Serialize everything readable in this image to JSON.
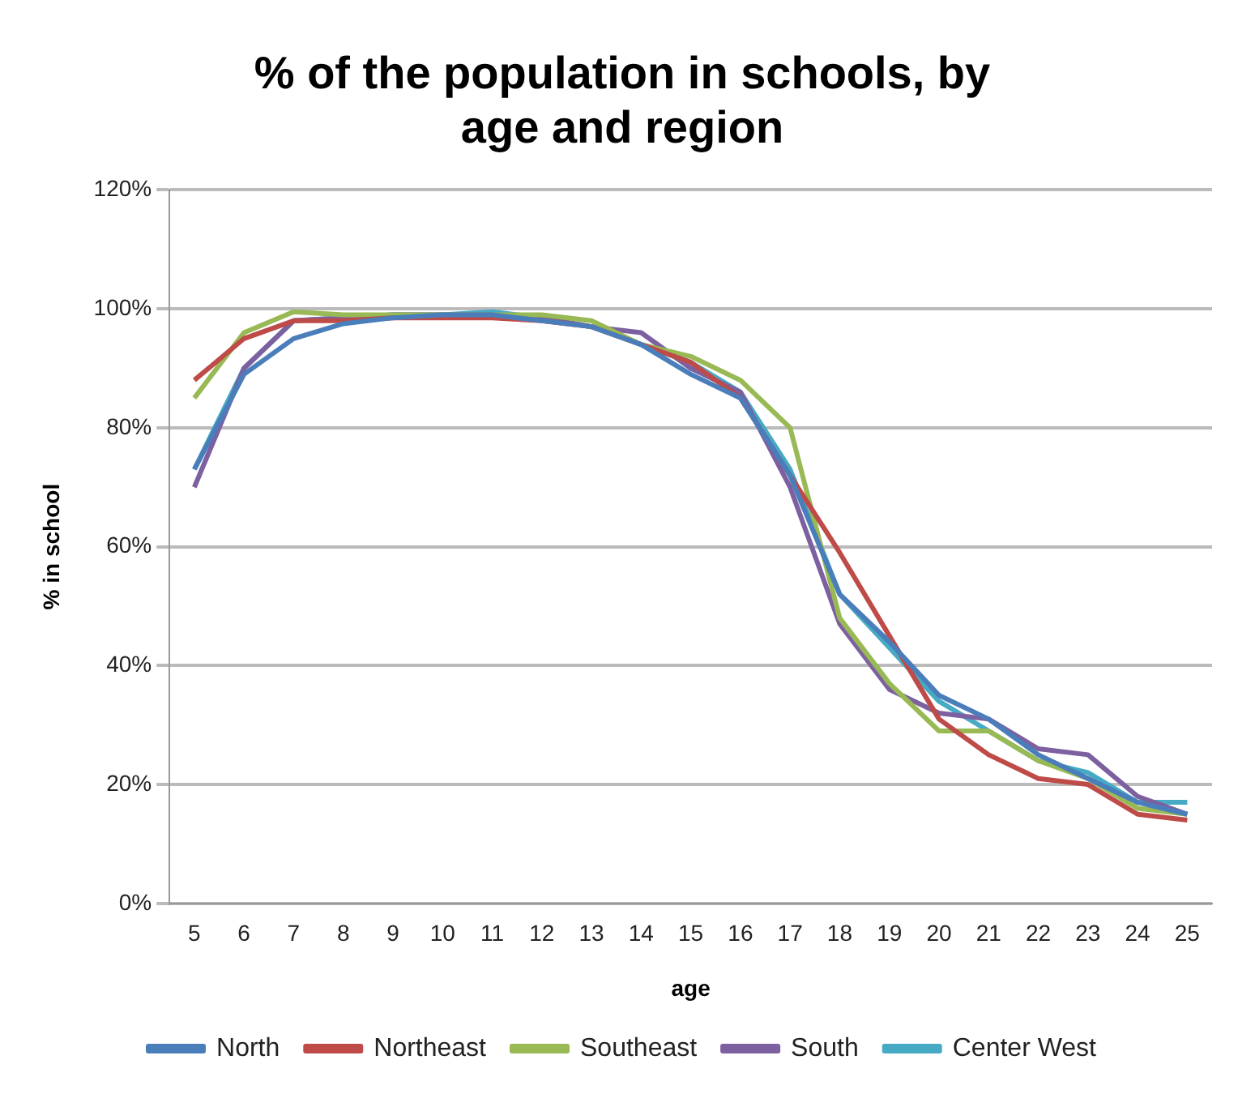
{
  "chart_data": {
    "type": "line",
    "title": "% of the population in schools, by age and region",
    "xlabel": "age",
    "ylabel": "% in school",
    "categories": [
      "5",
      "6",
      "7",
      "8",
      "9",
      "10",
      "11",
      "12",
      "13",
      "14",
      "15",
      "16",
      "17",
      "18",
      "19",
      "20",
      "21",
      "22",
      "23",
      "24",
      "25"
    ],
    "series": [
      {
        "name": "North",
        "color": "#4a7ebb",
        "values": [
          73,
          89,
          95,
          97.5,
          98.5,
          99,
          99,
          98,
          97,
          94,
          89,
          85,
          72,
          52,
          44,
          35,
          31,
          25,
          21,
          17,
          15
        ]
      },
      {
        "name": "Northeast",
        "color": "#be4b48",
        "values": [
          88,
          95,
          98,
          98,
          98.5,
          98.5,
          98.5,
          98,
          97,
          94,
          91,
          85,
          72,
          59,
          45,
          31,
          25,
          21,
          20,
          15,
          14
        ]
      },
      {
        "name": "Southeast",
        "color": "#98b954",
        "values": [
          85,
          96,
          99.5,
          99,
          99,
          99,
          99,
          99,
          98,
          94,
          92,
          88,
          80,
          48,
          37,
          29,
          29,
          24,
          21,
          16,
          15
        ]
      },
      {
        "name": "South",
        "color": "#7d60a0",
        "values": [
          70,
          90,
          98,
          98.5,
          99,
          99,
          99,
          98.5,
          97,
          96,
          90,
          86,
          70,
          47,
          36,
          32,
          31,
          26,
          25,
          18,
          15
        ]
      },
      {
        "name": "Center West",
        "color": "#46aac5",
        "values": [
          73,
          90,
          98,
          98.5,
          99,
          99,
          99.5,
          98.5,
          97,
          94,
          91,
          86,
          73,
          52,
          43,
          34,
          29,
          24,
          22,
          17,
          17
        ]
      }
    ],
    "ylim": [
      0,
      120
    ],
    "yticks": [
      {
        "value": 0,
        "label": "0%"
      },
      {
        "value": 20,
        "label": "20%"
      },
      {
        "value": 40,
        "label": "40%"
      },
      {
        "value": 60,
        "label": "60%"
      },
      {
        "value": 80,
        "label": "80%"
      },
      {
        "value": 100,
        "label": "100%"
      },
      {
        "value": 120,
        "label": "120%"
      }
    ],
    "grid": "y",
    "legend": "bottom",
    "marker": "none",
    "line_style": "solid"
  }
}
